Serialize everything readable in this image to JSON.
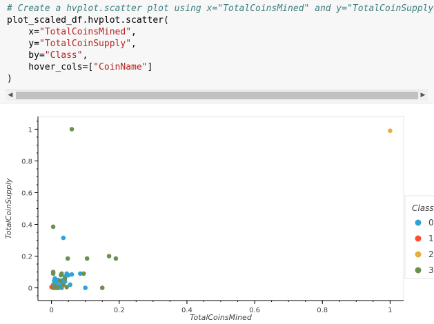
{
  "code_cell": {
    "lines": [
      [
        {
          "t": "# Create a hvplot.scatter plot using x=\"TotalCoinsMined\" and y=\"TotalCoinSupply\"",
          "c": "c-comment"
        }
      ],
      [
        {
          "t": "plot_scaled_df.hvplot.scatter(",
          "c": ""
        }
      ],
      [
        {
          "t": "    x=",
          "c": ""
        },
        {
          "t": "\"TotalCoinsMined\"",
          "c": "c-str"
        },
        {
          "t": ",",
          "c": ""
        }
      ],
      [
        {
          "t": "    y=",
          "c": ""
        },
        {
          "t": "\"TotalCoinSupply\"",
          "c": "c-str"
        },
        {
          "t": ",",
          "c": ""
        }
      ],
      [
        {
          "t": "    by=",
          "c": ""
        },
        {
          "t": "\"Class\"",
          "c": "c-str"
        },
        {
          "t": ",",
          "c": ""
        }
      ],
      [
        {
          "t": "    hover_cols=[",
          "c": ""
        },
        {
          "t": "\"CoinName\"",
          "c": "c-str"
        },
        {
          "t": "]",
          "c": ""
        }
      ],
      [
        {
          "t": ")",
          "c": ""
        }
      ]
    ]
  },
  "scrollbar": {
    "left_arrow": "◀",
    "right_arrow": "▶"
  },
  "chart_data": {
    "type": "scatter",
    "xlabel": "TotalCoinsMined",
    "ylabel": "TotalCoinSupply",
    "xlim": [
      -0.04,
      1.04
    ],
    "ylim": [
      -0.08,
      1.08
    ],
    "xticks": [
      0,
      0.2,
      0.4,
      0.6,
      0.8,
      1
    ],
    "xtick_labels": [
      "0",
      "0.2",
      "0.4",
      "0.6",
      "0.8",
      "1"
    ],
    "yticks": [
      0,
      0.2,
      0.4,
      0.6,
      0.8,
      1
    ],
    "ytick_labels": [
      "0",
      "0.2",
      "0.4",
      "0.6",
      "0.8",
      "1"
    ],
    "grid": false,
    "legend_title": "Class",
    "legend_position": "right",
    "series": [
      {
        "name": "0",
        "color": "#30a2da",
        "points": [
          [
            0.035,
            0.315
          ],
          [
            0.01,
            0.06
          ],
          [
            0.015,
            0.035
          ],
          [
            0.02,
            0.05
          ],
          [
            0.03,
            0.03
          ],
          [
            0.035,
            0.05
          ],
          [
            0.04,
            0.07
          ],
          [
            0.045,
            0.09
          ],
          [
            0.05,
            0.08
          ],
          [
            0.055,
            0.02
          ],
          [
            0.06,
            0.085
          ],
          [
            0.085,
            0.09
          ],
          [
            0.1,
            0.0
          ],
          [
            0.02,
            0.01
          ],
          [
            0.03,
            0.0
          ],
          [
            0.012,
            0.0
          ],
          [
            0.025,
            0.015
          ],
          [
            0.04,
            0.04
          ],
          [
            0.005,
            0.02
          ],
          [
            0.008,
            0.045
          ]
        ]
      },
      {
        "name": "1",
        "color": "#fc4f30",
        "points": [
          [
            0.0,
            0.005
          ],
          [
            0.005,
            0.008
          ]
        ]
      },
      {
        "name": "2",
        "color": "#e5ae38",
        "points": [
          [
            1.0,
            0.99
          ]
        ]
      },
      {
        "name": "3",
        "color": "#6d904f",
        "points": [
          [
            0.06,
            1.0
          ],
          [
            0.005,
            0.385
          ],
          [
            0.17,
            0.2
          ],
          [
            0.19,
            0.185
          ],
          [
            0.105,
            0.185
          ],
          [
            0.048,
            0.185
          ],
          [
            0.15,
            0.0
          ],
          [
            0.095,
            0.09
          ],
          [
            0.005,
            0.1
          ],
          [
            0.005,
            0.09
          ],
          [
            0.03,
            0.09
          ],
          [
            0.04,
            0.06
          ],
          [
            0.025,
            0.045
          ],
          [
            0.035,
            0.02
          ],
          [
            0.015,
            0.0
          ],
          [
            0.045,
            0.005
          ],
          [
            0.01,
            0.01
          ],
          [
            0.02,
            0.0
          ],
          [
            0.005,
            0.0
          ],
          [
            0.028,
            0.08
          ]
        ]
      }
    ]
  }
}
